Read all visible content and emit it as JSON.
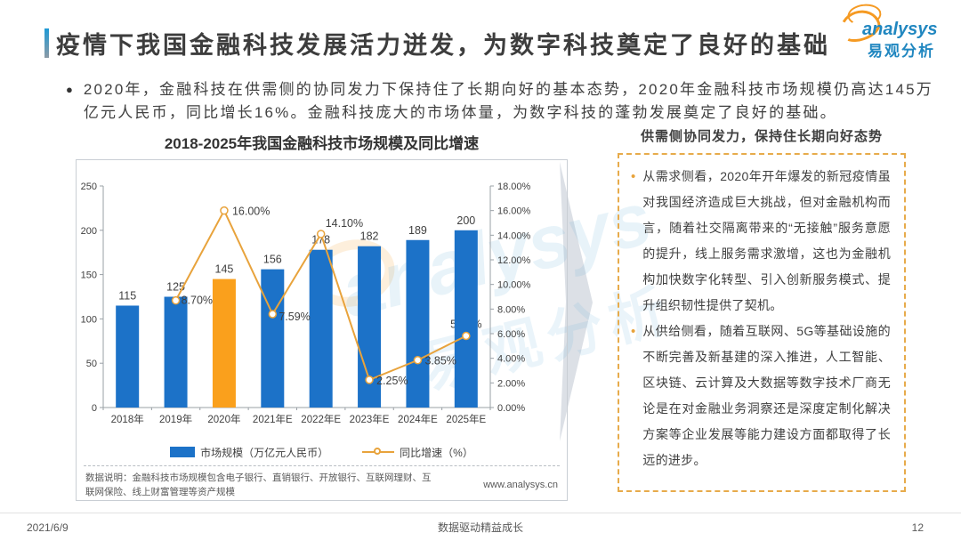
{
  "header": {
    "title": "疫情下我国金融科技发展活力迸发，为数字科技奠定了良好的基础",
    "logo": {
      "brand_en": "analysys",
      "brand_cn": "易观分析"
    }
  },
  "intro": {
    "bullet": "●",
    "text": "2020年，金融科技在供需侧的协同发力下保持住了长期向好的基本态势，2020年金融科技市场规模仍高达145万亿元人民币，同比增长16%。金融科技庞大的市场体量，为数字科技的蓬勃发展奠定了良好的基础。"
  },
  "chart_data": {
    "type": "bar",
    "title": "2018-2025年我国金融科技市场规模及同比增速",
    "categories": [
      "2018年",
      "2019年",
      "2020年",
      "2021年E",
      "2022年E",
      "2023年E",
      "2024年E",
      "2025年E"
    ],
    "series": [
      {
        "name": "市场规模（万亿元人民币）",
        "type": "bar",
        "axis": "left",
        "values": [
          115,
          125,
          145,
          156,
          178,
          182,
          189,
          200
        ],
        "color": "#1c72c8",
        "highlight_index": 2,
        "highlight_color": "#faa01c"
      },
      {
        "name": "同比增速（%）",
        "type": "line",
        "axis": "right",
        "values": [
          null,
          8.7,
          16.0,
          7.59,
          14.1,
          2.25,
          3.85,
          5.82
        ],
        "labels": [
          "",
          "8.70%",
          "16.00%",
          "7.59%",
          "14.10%",
          "2.25%",
          "3.85%",
          "5.82%"
        ],
        "color": "#e8a33c"
      }
    ],
    "left_axis": {
      "min": 0,
      "max": 250,
      "ticks": [
        "0",
        "50",
        "100",
        "150",
        "200",
        "250"
      ]
    },
    "right_axis": {
      "min": 0,
      "max": 18,
      "ticks": [
        "0.00%",
        "2.00%",
        "4.00%",
        "6.00%",
        "8.00%",
        "10.00%",
        "12.00%",
        "14.00%",
        "16.00%",
        "18.00%"
      ]
    },
    "grid": false,
    "legend_position": "bottom",
    "note": "数据说明：金融科技市场规模包含电子银行、直销银行、开放银行、互联网理财、互联网保险、线上财富管理等资产规模",
    "source_url": "www.analysys.cn"
  },
  "right_panel": {
    "title": "供需侧协同发力，保持住长期向好态势",
    "bullets": [
      "从需求侧看，2020年开年爆发的新冠疫情虽对我国经济造成巨大挑战，但对金融机构而言，随着社交隔离带来的“无接触”服务意愿的提升，线上服务需求激增，这也为金融机构加快数字化转型、引入创新服务模式、提升组织韧性提供了契机。",
      "从供给侧看，随着互联网、5G等基础设施的不断完善及新基建的深入推进，人工智能、区块链、云计算及大数据等数字技术厂商无论是在对金融业务洞察还是深度定制化解决方案等企业发展等能力建设方面都取得了长远的进步。"
    ]
  },
  "watermark": {
    "text_en": "analysys",
    "text_cn": "易观分析"
  },
  "footer": {
    "date": "2021/6/9",
    "slogan": "数据驱动精益成长",
    "page": "12"
  }
}
